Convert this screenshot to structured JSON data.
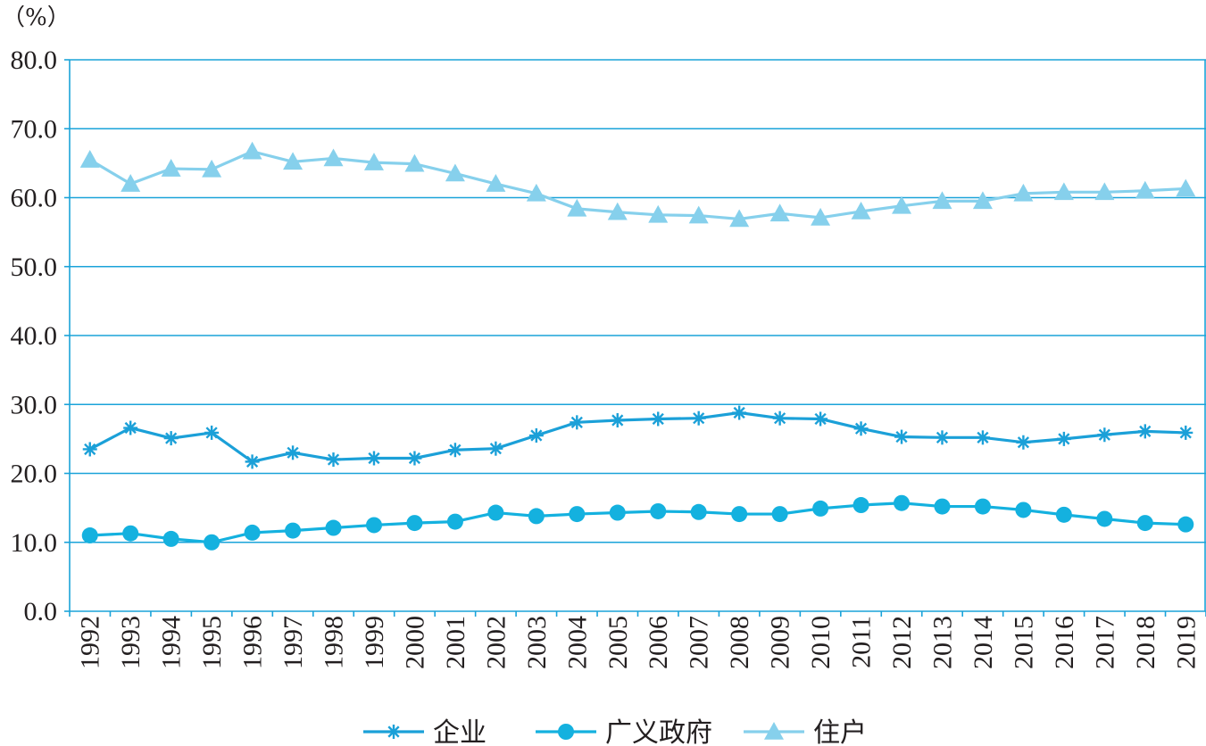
{
  "chart_data": {
    "type": "line",
    "unit_label": "（%）",
    "ylim": [
      0,
      80
    ],
    "yticks": [
      "0.0",
      "10.0",
      "20.0",
      "30.0",
      "40.0",
      "50.0",
      "60.0",
      "70.0",
      "80.0"
    ],
    "grid": true,
    "legend_position": "bottom",
    "categories": [
      "1992",
      "1993",
      "1994",
      "1995",
      "1996",
      "1997",
      "1998",
      "1999",
      "2000",
      "2001",
      "2002",
      "2003",
      "2004",
      "2005",
      "2006",
      "2007",
      "2008",
      "2009",
      "2010",
      "2011",
      "2012",
      "2013",
      "2014",
      "2015",
      "2016",
      "2017",
      "2018",
      "2019"
    ],
    "series": [
      {
        "name": "企业",
        "marker": "asterisk",
        "color": "#1ba0d8",
        "values": [
          23.5,
          26.6,
          25.1,
          25.9,
          21.7,
          23.0,
          22.0,
          22.2,
          22.2,
          23.4,
          23.6,
          25.5,
          27.4,
          27.7,
          27.9,
          28.0,
          28.8,
          28.0,
          27.9,
          26.5,
          25.3,
          25.2,
          25.2,
          24.5,
          25.0,
          25.6,
          26.1,
          25.9
        ]
      },
      {
        "name": "广义政府",
        "marker": "circle",
        "color": "#14b1df",
        "values": [
          11.0,
          11.3,
          10.5,
          10.0,
          11.4,
          11.7,
          12.1,
          12.5,
          12.8,
          13.0,
          14.3,
          13.8,
          14.1,
          14.3,
          14.5,
          14.4,
          14.1,
          14.1,
          14.9,
          15.4,
          15.7,
          15.2,
          15.2,
          14.7,
          14.0,
          13.4,
          12.8,
          12.6
        ]
      },
      {
        "name": "住户",
        "marker": "triangle",
        "color": "#86d0ec",
        "values": [
          65.5,
          62.0,
          64.2,
          64.1,
          66.7,
          65.2,
          65.7,
          65.1,
          64.9,
          63.5,
          62.0,
          60.6,
          58.4,
          57.9,
          57.5,
          57.4,
          56.9,
          57.7,
          57.1,
          58.0,
          58.8,
          59.5,
          59.5,
          60.6,
          60.8,
          60.8,
          61.0,
          61.3
        ]
      }
    ]
  }
}
